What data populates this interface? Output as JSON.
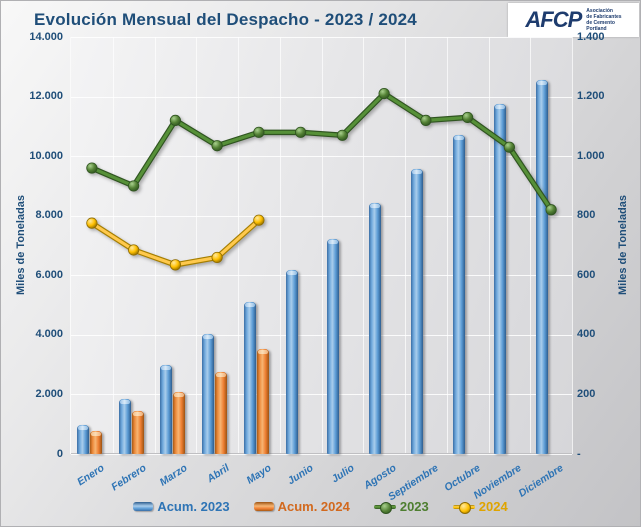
{
  "header": {
    "title": "Evolución Mensual del Despacho - 2023 / 2024",
    "logo": {
      "wordmark": "AFCP",
      "org_lines": [
        "Asociación",
        "de Fabricantes",
        "de Cemento",
        "Portland"
      ]
    }
  },
  "chart_data": {
    "type": "combo-bar-line",
    "title": "Evolución Mensual del Despacho - 2023 / 2024",
    "categories": [
      "Enero",
      "Febrero",
      "Marzo",
      "Abril",
      "Mayo",
      "Junio",
      "Julio",
      "Agosto",
      "Septiembre",
      "Octubre",
      "Noviembre",
      "Diciembre"
    ],
    "series": [
      {
        "name": "Acum. 2023",
        "type": "bar",
        "axis": "left",
        "color": "#5B9BD5",
        "label_color": "#2E74B5",
        "values": [
          960,
          1850,
          2990,
          4020,
          5110,
          6170,
          7230,
          8440,
          9570,
          10710,
          11740,
          12570
        ]
      },
      {
        "name": "Acum. 2024",
        "type": "bar",
        "axis": "left",
        "color": "#ED7D31",
        "label_color": "#D2691E",
        "values": [
          770,
          1450,
          2090,
          2760,
          3530
        ]
      },
      {
        "name": "2023",
        "type": "line",
        "axis": "right",
        "color": "#4E8234",
        "label_color": "#4E7E30",
        "values": [
          960,
          900,
          1120,
          1035,
          1080,
          1080,
          1070,
          1210,
          1120,
          1130,
          1030,
          820
        ]
      },
      {
        "name": "2024",
        "type": "line",
        "axis": "right",
        "color": "#FFC000",
        "label_color": "#DFA400",
        "values": [
          775,
          685,
          635,
          660,
          785
        ]
      }
    ],
    "left_axis": {
      "title": "Miles de Toneladas",
      "min": 0,
      "max": 14000,
      "ticks": [
        "14.000",
        "12.000",
        "10.000",
        "8.000",
        "6.000",
        "4.000",
        "2.000",
        "0"
      ]
    },
    "right_axis": {
      "title": "Miles de Toneladas",
      "min": 0,
      "max": 1400,
      "ticks": [
        "1.400",
        "1.200",
        "1.000",
        "800",
        "600",
        "400",
        "200",
        "-"
      ]
    },
    "legend": [
      "Acum. 2023",
      "Acum. 2024",
      "2023",
      "2024"
    ],
    "legend_position": "bottom",
    "grid": "on"
  }
}
